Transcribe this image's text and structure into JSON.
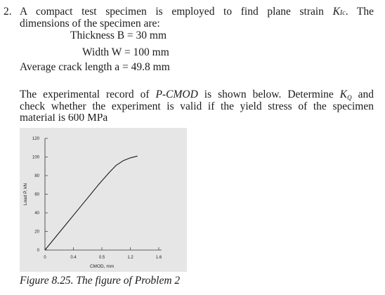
{
  "problem": {
    "number": "2.",
    "line1_text": "A compact test specimen is employed to find plane strain",
    "line1_k": "K",
    "line1_sub": "Ic",
    "line1_end": ". The",
    "line2": "dimensions of the specimen are:",
    "thickness": "Thickness B = 30 mm",
    "width": "Width W = 100 mm",
    "crack": "Average crack length a = 49.8 mm",
    "para2_line1_a": "The experimental record of ",
    "para2_line1_b": "P-CMOD",
    "para2_line1_c": " is shown below. Determine ",
    "para2_line1_k": "K",
    "para2_line1_sub": "Q",
    "para2_line1_d": " and",
    "para2_line2": "check whether the experiment is valid if the yield stress of the specimen",
    "para2_line3": "material is 600 MPa"
  },
  "chart_data": {
    "type": "line",
    "xlabel": "CMOD, mm",
    "ylabel": "Load P, kN",
    "xticks": [
      "0",
      "0.4",
      "0.5",
      "1.2",
      "1.6"
    ],
    "yticks": [
      "0",
      "20",
      "40",
      "60",
      "80",
      "100",
      "120"
    ],
    "series": [
      {
        "x": [
          0,
          0.15,
          0.3,
          0.45,
          0.6,
          0.75,
          0.9,
          1.0,
          1.1,
          1.2,
          1.3
        ],
        "y": [
          0,
          14,
          28,
          42,
          56,
          70,
          83,
          91,
          96,
          99,
          101
        ]
      }
    ],
    "colors": {
      "curve": "#1a1a1a",
      "background": "#e6e6e6"
    }
  },
  "caption": "Figure 8.25. The figure of Problem 2"
}
